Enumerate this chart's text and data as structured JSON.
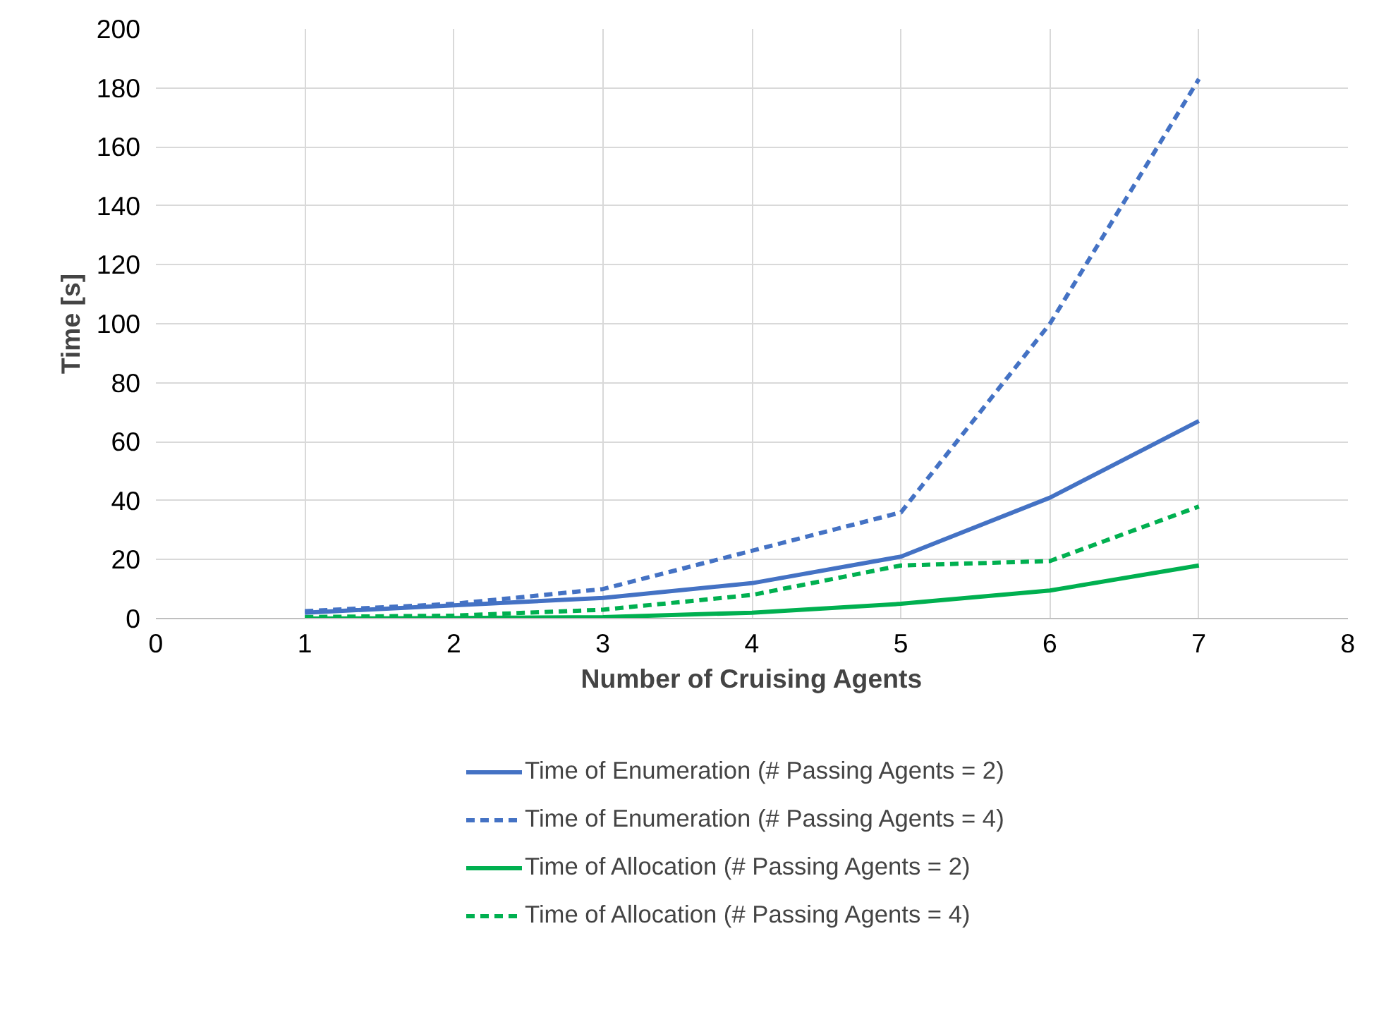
{
  "chart_data": {
    "type": "line",
    "xlabel": "Number of Cruising Agents",
    "ylabel": "Time [s]",
    "xlim": [
      0,
      8
    ],
    "xticks": [
      0,
      1,
      2,
      3,
      4,
      5,
      6,
      7,
      8
    ],
    "ylim": [
      0,
      200
    ],
    "yticks": [
      0,
      20,
      40,
      60,
      80,
      100,
      120,
      140,
      160,
      180,
      200
    ],
    "grid": true,
    "legend": "bottom",
    "x": [
      1,
      2,
      3,
      4,
      5,
      6,
      7
    ],
    "series": [
      {
        "name": "Time of Enumeration (# Passing Agents = 2)",
        "color": "#4472c4",
        "line_style": "solid",
        "values": [
          2,
          4.5,
          7,
          12,
          21,
          41,
          67
        ]
      },
      {
        "name": "Time of Enumeration (# Passing Agents = 4)",
        "color": "#4472c4",
        "line_style": "dashed",
        "values": [
          2.5,
          5,
          10,
          23,
          36,
          100,
          183
        ]
      },
      {
        "name": "Time of Allocation (# Passing Agents = 2)",
        "color": "#00b050",
        "line_style": "solid",
        "values": [
          0,
          0.2,
          0.5,
          2,
          5,
          9.5,
          18
        ]
      },
      {
        "name": "Time of Allocation (# Passing Agents = 4)",
        "color": "#00b050",
        "line_style": "dashed",
        "values": [
          0.5,
          1,
          3,
          8,
          18,
          19.5,
          38
        ]
      }
    ]
  }
}
